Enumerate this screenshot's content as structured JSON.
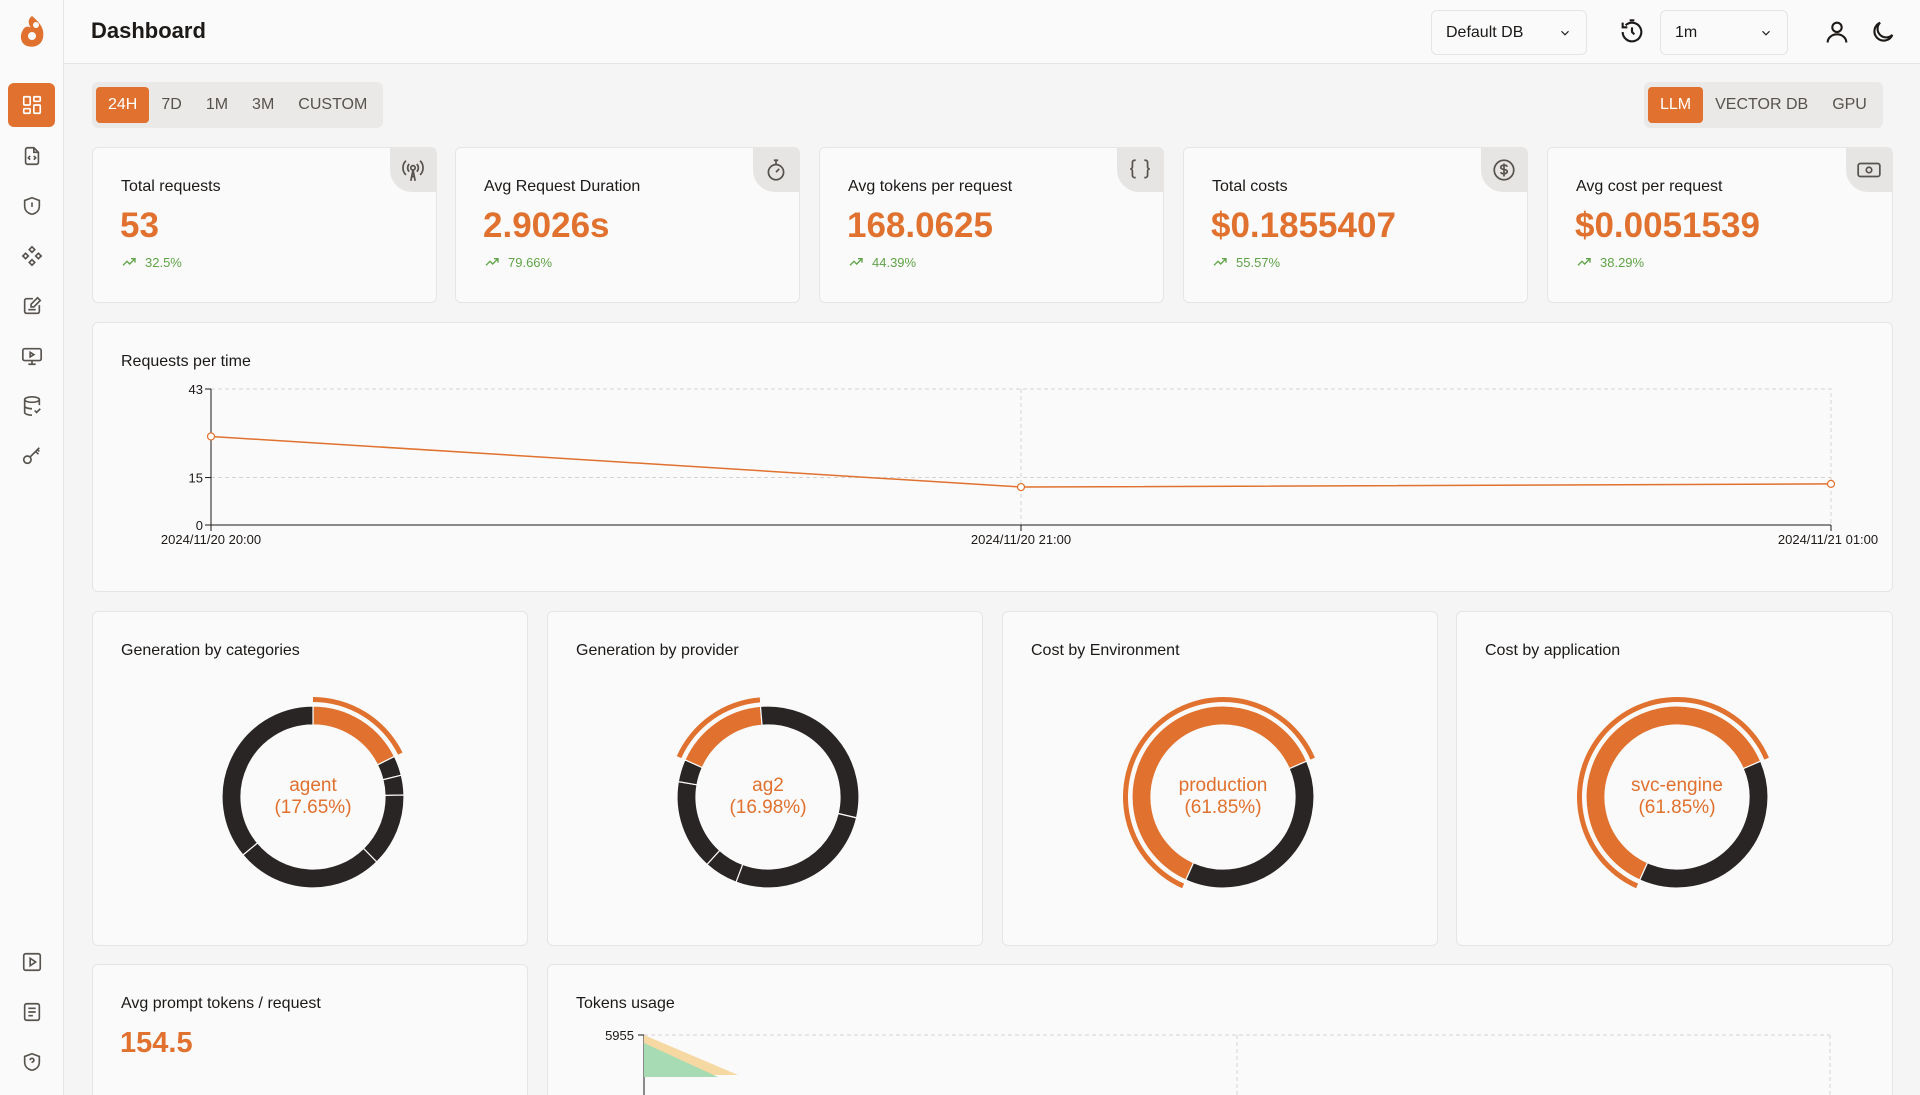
{
  "header": {
    "title": "Dashboard",
    "db_select": "Default DB",
    "refresh_select": "1m"
  },
  "time_filters": [
    "24H",
    "7D",
    "1M",
    "3M",
    "CUSTOM"
  ],
  "time_filter_active": "24H",
  "type_filters": [
    "LLM",
    "VECTOR DB",
    "GPU"
  ],
  "type_filter_active": "LLM",
  "stats": [
    {
      "title": "Total requests",
      "value": "53",
      "trend": "32.5%",
      "icon": "broadcast-icon"
    },
    {
      "title": "Avg Request Duration",
      "value": "2.9026s",
      "trend": "79.66%",
      "icon": "stopwatch-icon"
    },
    {
      "title": "Avg tokens per request",
      "value": "168.0625",
      "trend": "44.39%",
      "icon": "braces-icon"
    },
    {
      "title": "Total costs",
      "value": "$0.1855407",
      "trend": "55.57%",
      "icon": "dollar-icon"
    },
    {
      "title": "Avg cost per request",
      "value": "$0.0051539",
      "trend": "38.29%",
      "icon": "banknote-icon"
    }
  ],
  "requests_chart": {
    "title": "Requests per time"
  },
  "chart_data": [
    {
      "type": "line",
      "title": "Requests per time",
      "x": [
        "2024/11/20 20:00",
        "2024/11/20 21:00",
        "2024/11/21 01:00"
      ],
      "y_ticks": [
        "0",
        "15",
        "43"
      ],
      "ylim": [
        0,
        43
      ],
      "series": [
        {
          "values": [
            28,
            12,
            13
          ]
        }
      ],
      "color": "#e0712e",
      "grid": true
    },
    {
      "type": "pie",
      "title": "Generation by categories",
      "center_label": "agent",
      "center_value": "(17.65%)",
      "slices": [
        17.65,
        3.5,
        3.5,
        13,
        26.35,
        36
      ]
    },
    {
      "type": "pie",
      "title": "Generation by provider",
      "center_label": "ag2",
      "center_value": "(16.98%)",
      "slices": [
        6,
        16,
        4,
        16.98,
        30,
        27.02
      ]
    },
    {
      "type": "pie",
      "title": "Cost by Environment",
      "center_label": "production",
      "center_value": "(61.85%)",
      "slices": [
        61.85,
        38.15
      ]
    },
    {
      "type": "pie",
      "title": "Cost by application",
      "center_label": "svc-engine",
      "center_value": "(61.85%)",
      "slices": [
        61.85,
        38.15
      ]
    },
    {
      "type": "area",
      "title": "Tokens usage",
      "y_ticks": [
        "5955"
      ]
    }
  ],
  "donuts": [
    {
      "title": "Generation by categories",
      "label": "agent",
      "pct": "(17.65%)"
    },
    {
      "title": "Generation by provider",
      "label": "ag2",
      "pct": "(16.98%)"
    },
    {
      "title": "Cost by Environment",
      "label": "production",
      "pct": "(61.85%)"
    },
    {
      "title": "Cost by application",
      "label": "svc-engine",
      "pct": "(61.85%)"
    }
  ],
  "prompt_tokens": {
    "title": "Avg prompt tokens / request",
    "value": "154.5"
  },
  "tokens_usage": {
    "title": "Tokens usage",
    "y_max": "5955"
  },
  "colors": {
    "accent": "#e0712e",
    "dark": "#292524",
    "trend": "#5fa347"
  }
}
